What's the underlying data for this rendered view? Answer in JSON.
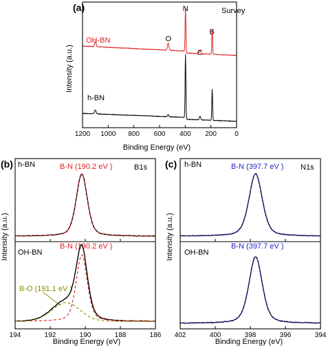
{
  "chart_data": [
    {
      "panel": "(a)",
      "type": "line",
      "title": "Survey",
      "xlabel": "Binding Energy (eV)",
      "ylabel": "Intensity (a.u.)",
      "xlim": [
        1200,
        0
      ],
      "x_ticks": [
        "1200",
        "1000",
        "800",
        "600",
        "400",
        "200",
        "0"
      ],
      "x_reversed": true,
      "series": [
        {
          "name": "OH-BN",
          "color": "#e01c1c",
          "baseline": 0.62,
          "slope": 5e-05,
          "peaks": [
            {
              "x": 1100,
              "h": 0.04,
              "w": 6
            },
            {
              "x": 533,
              "h": 0.055,
              "w": 6
            },
            {
              "x": 398,
              "h": 0.34,
              "w": 3
            },
            {
              "x": 285,
              "h": 0.03,
              "w": 5
            },
            {
              "x": 190,
              "h": 0.2,
              "w": 3
            }
          ]
        },
        {
          "name": "h-BN",
          "color": "#000000",
          "baseline": 0.09,
          "slope": 4e-05,
          "peaks": [
            {
              "x": 1100,
              "h": 0.03,
              "w": 6
            },
            {
              "x": 533,
              "h": 0.015,
              "w": 6
            },
            {
              "x": 398,
              "h": 0.5,
              "w": 3
            },
            {
              "x": 285,
              "h": 0.03,
              "w": 5
            },
            {
              "x": 190,
              "h": 0.25,
              "w": 3
            }
          ]
        }
      ],
      "peak_labels": [
        {
          "text": "O",
          "x": 533
        },
        {
          "text": "N",
          "x": 398
        },
        {
          "text": "C",
          "x": 285
        },
        {
          "text": "B",
          "x": 190
        }
      ]
    },
    {
      "panel": "(b)",
      "type": "line",
      "title": "B1s",
      "xlabel": "Binding Energy (eV)",
      "ylabel": "Intensity (a.u.)",
      "xlim": [
        194,
        186
      ],
      "x_ticks": [
        "194",
        "192",
        "190",
        "188",
        "186"
      ],
      "x_reversed": true,
      "subplots": [
        {
          "sample": "h-BN",
          "peak_fits": [
            {
              "label": "B-N (190.2 eV )",
              "center": 190.2,
              "fwhm": 0.75,
              "color": "#e01c1c"
            }
          ]
        },
        {
          "sample": "OH-BN",
          "peak_fits": [
            {
              "label": "B-N (190.2 eV )",
              "center": 190.2,
              "fwhm": 0.75,
              "color": "#e01c1c"
            },
            {
              "label": "B-O (191.1 eV )",
              "center": 191.1,
              "fwhm": 1.9,
              "color": "#8b8b00"
            }
          ]
        }
      ]
    },
    {
      "panel": "(c)",
      "type": "line",
      "title": "N1s",
      "xlabel": "Binding Energy (eV)",
      "ylabel": "Intensity (a.u.)",
      "xlim": [
        402,
        394
      ],
      "x_ticks": [
        "402",
        "400",
        "398",
        "396",
        "394"
      ],
      "x_reversed": true,
      "subplots": [
        {
          "sample": "h-BN",
          "peak_fits": [
            {
              "label": "B-N (397.7 eV )",
              "center": 397.7,
              "fwhm": 0.9,
              "color": "#2323c8"
            }
          ]
        },
        {
          "sample": "OH-BN",
          "peak_fits": [
            {
              "label": "B-N (397.7 eV )",
              "center": 397.7,
              "fwhm": 0.9,
              "color": "#2323c8"
            }
          ]
        }
      ]
    }
  ]
}
